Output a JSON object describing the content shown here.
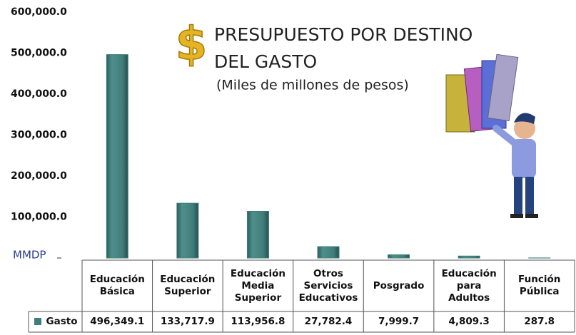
{
  "chart_data": {
    "type": "bar",
    "title_symbol": "$",
    "title_lines": [
      "PRESUPUESTO POR DESTINO",
      "DEL GASTO"
    ],
    "subtitle": "(Miles de millones de pesos)",
    "y_unit": "MMDP",
    "categories": [
      "Educación Básica",
      "Educación Superior",
      "Educación Media Superior",
      "Otros Servicios Educativos",
      "Posgrado",
      "Educación para Adultos",
      "Función Pública"
    ],
    "series": [
      {
        "name": "Gasto",
        "color": "#3f7d7a",
        "values": [
          496349.1,
          133717.9,
          113956.8,
          27782.4,
          7999.7,
          4809.3,
          287.8
        ],
        "value_labels": [
          "496,349.1",
          "133,717.9",
          "113,956.8",
          "27,782.4",
          "7,999.7",
          "4,809.3",
          "287.8"
        ]
      }
    ],
    "ylim": [
      0,
      600000
    ],
    "yticks": [
      {
        "value": 100000,
        "label": "100,000.0"
      },
      {
        "value": 200000,
        "label": "200,000.0"
      },
      {
        "value": 300000,
        "label": "300,000.0"
      },
      {
        "value": 400000,
        "label": "400,000.0"
      },
      {
        "value": 500000,
        "label": "500,000.0"
      },
      {
        "value": 600000,
        "label": "600,000.0"
      }
    ],
    "grid": false
  }
}
